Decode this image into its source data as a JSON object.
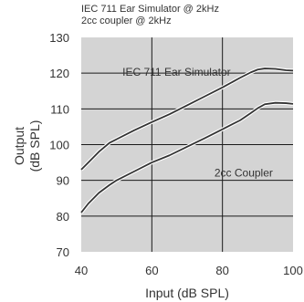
{
  "chart_data": {
    "type": "line",
    "title_lines": [
      "IEC 711 Ear Simulator @ 2kHz",
      "2cc coupler @ 2kHz"
    ],
    "xlabel": "Input (dB SPL)",
    "ylabel_lines": [
      "Output",
      "(dB SPL)"
    ],
    "xlim": [
      40,
      100
    ],
    "ylim": [
      70,
      130
    ],
    "xticks": [
      40,
      60,
      80,
      100
    ],
    "yticks": [
      70,
      80,
      90,
      100,
      110,
      120,
      130
    ],
    "grid": true,
    "series": [
      {
        "name": "IEC 711 Ear Simulator",
        "x": [
          40,
          42,
          45,
          48,
          50,
          55,
          60,
          65,
          70,
          75,
          80,
          85,
          88,
          90,
          92,
          95,
          98,
          100
        ],
        "y": [
          93,
          95,
          98,
          100.5,
          101.5,
          104,
          106.3,
          108.5,
          111,
          113.5,
          116,
          118.7,
          120.2,
          121,
          121.3,
          121.2,
          120.8,
          120.7
        ],
        "label_at": [
          67,
          119.3
        ]
      },
      {
        "name": "2cc Coupler",
        "x": [
          40,
          42,
          45,
          48,
          50,
          55,
          60,
          65,
          70,
          75,
          80,
          85,
          88,
          90,
          92,
          95,
          98,
          100
        ],
        "y": [
          81,
          83.5,
          86.5,
          88.7,
          90,
          92.5,
          95,
          97,
          99.4,
          101.8,
          104.3,
          106.8,
          108.8,
          110.2,
          111.3,
          111.7,
          111.6,
          111.4
        ],
        "label_at": [
          86,
          91.1
        ]
      }
    ]
  }
}
